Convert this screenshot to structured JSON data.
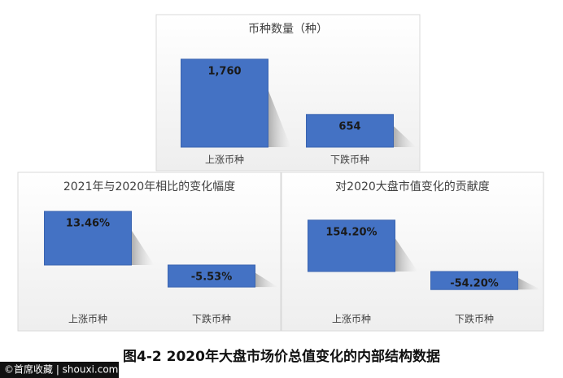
{
  "chart_data": [
    {
      "type": "bar",
      "title": "币种数量（种）",
      "categories": [
        "上涨币种",
        "下跌币种"
      ],
      "values": [
        1760,
        654
      ],
      "value_labels": [
        "1,760",
        "654"
      ],
      "color": "#4472c4",
      "ylim": [
        0,
        2000
      ]
    },
    {
      "type": "bar",
      "title": "2021年与2020年相比的变化幅度",
      "categories": [
        "上涨币种",
        "下跌币种"
      ],
      "values": [
        13.46,
        -5.53
      ],
      "value_labels": [
        "13.46%",
        "-5.53%"
      ],
      "color": "#4472c4",
      "ylim": [
        -10,
        15
      ]
    },
    {
      "type": "bar",
      "title": "对2020大盘市值变化的贡献度",
      "categories": [
        "上涨币种",
        "下跌币种"
      ],
      "values": [
        154.2,
        -54.2
      ],
      "value_labels": [
        "154.20%",
        "-54.20%"
      ],
      "color": "#4472c4",
      "ylim": [
        -100,
        200
      ]
    }
  ],
  "caption": "图4-2  2020年大盘市场价总值变化的内部结构数据",
  "watermark": "©首席收藏 | shouxi.com"
}
